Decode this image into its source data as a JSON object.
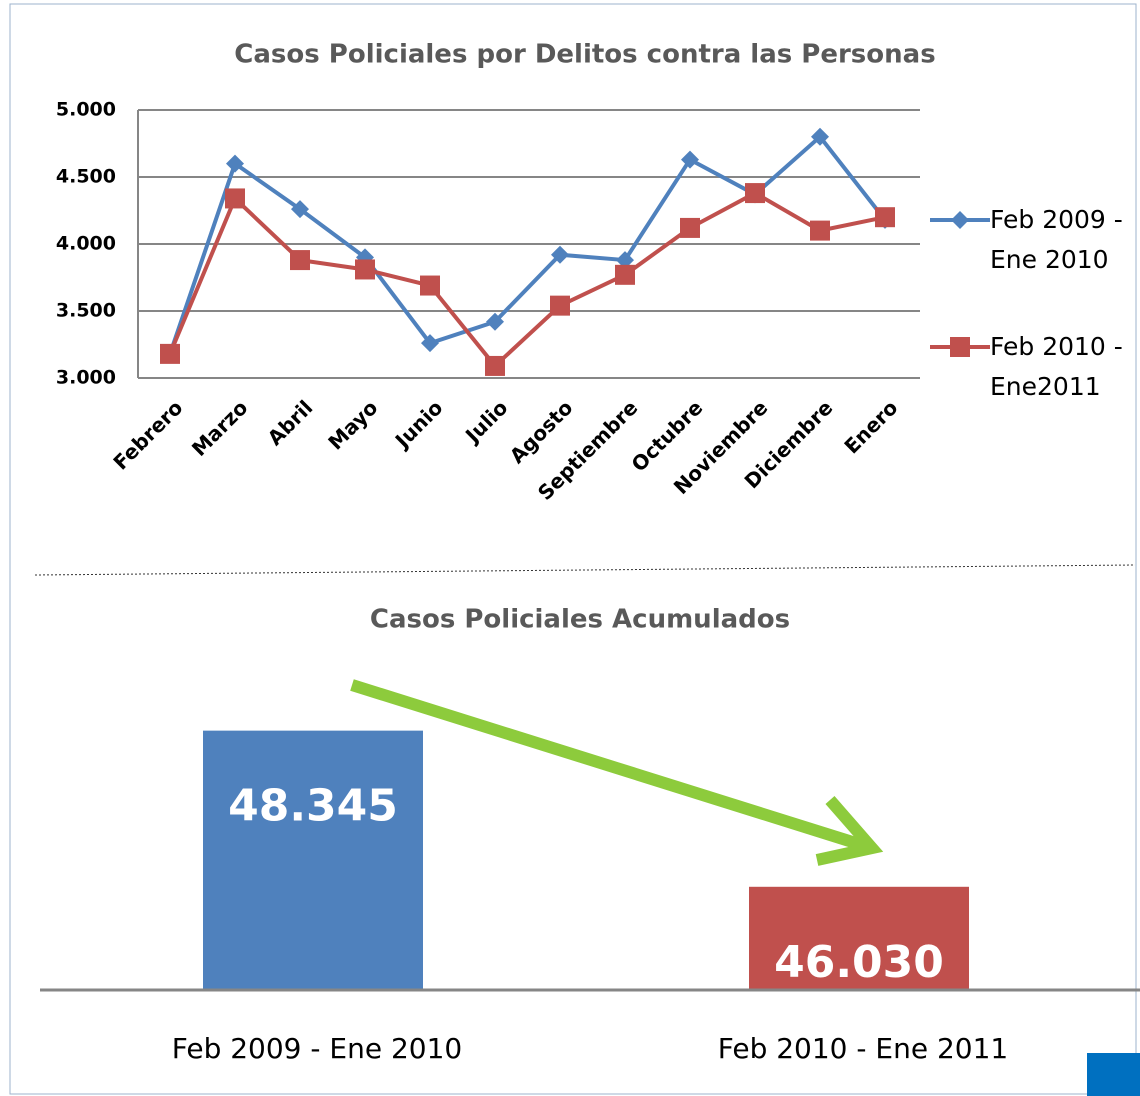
{
  "chart_data": [
    {
      "type": "line",
      "title": "Casos Policiales por Delitos contra las Personas",
      "categories": [
        "Febrero",
        "Marzo",
        "Abril",
        "Mayo",
        "Junio",
        "Julio",
        "Agosto",
        "Septiembre",
        "Octubre",
        "Noviembre",
        "Diciembre",
        "Enero"
      ],
      "series": [
        {
          "name": "Feb 2009 - Ene 2010",
          "color": "#4f81bd",
          "marker": "diamond",
          "values": [
            3180,
            4600,
            4260,
            3900,
            3260,
            3420,
            3920,
            3880,
            4630,
            4370,
            4800,
            4180
          ]
        },
        {
          "name": "Feb 2010 - Ene2011",
          "color": "#c0504d",
          "marker": "square",
          "values": [
            3180,
            4340,
            3880,
            3810,
            3690,
            3090,
            3540,
            3770,
            4120,
            4380,
            4100,
            4200
          ]
        }
      ],
      "ylim": [
        3000,
        5000
      ],
      "yticks": [
        {
          "value": 3000,
          "label": "3.000"
        },
        {
          "value": 3500,
          "label": "3.500"
        },
        {
          "value": 4000,
          "label": "4.000"
        },
        {
          "value": 4500,
          "label": "4.500"
        },
        {
          "value": 5000,
          "label": "5.000"
        }
      ],
      "grid": true,
      "legend": "right"
    },
    {
      "type": "bar",
      "title": "Casos Policiales Acumulados",
      "categories": [
        "Feb 2009 - Ene 2010",
        "Feb 2010 - Ene 2011"
      ],
      "values": [
        48345,
        46030
      ],
      "value_labels": [
        "48.345",
        "46.030"
      ],
      "colors": [
        "#4f81bd",
        "#c0504d"
      ],
      "ylim": [
        44500,
        50000
      ]
    }
  ]
}
